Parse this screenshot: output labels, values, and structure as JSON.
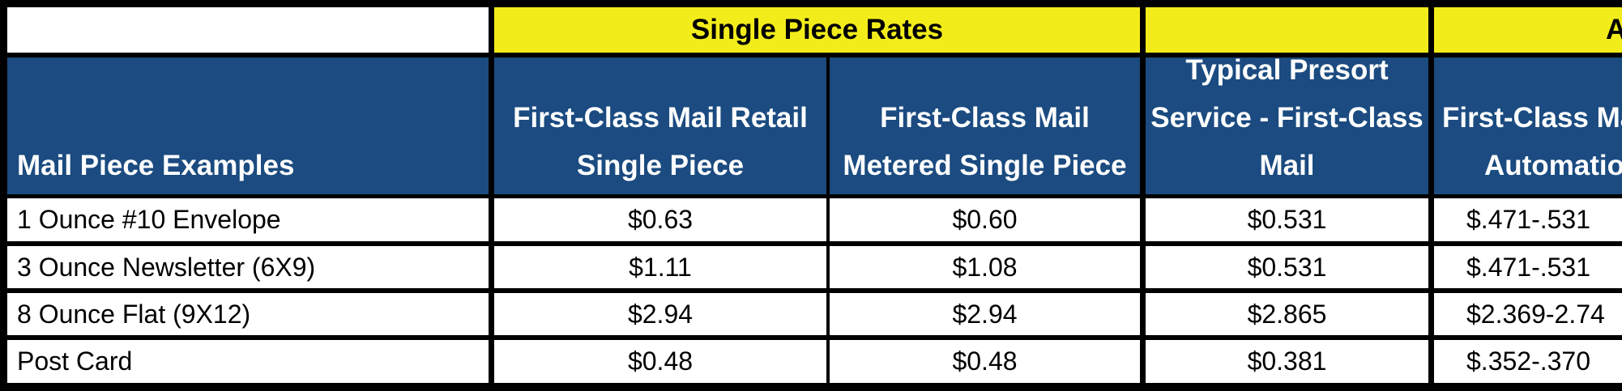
{
  "colors": {
    "group_header_bg": "#f2ec1b",
    "column_header_bg": "#1b4b80",
    "column_header_text": "#ffffff",
    "grid_lines": "#000000",
    "cell_bg": "#ffffff"
  },
  "group_headers": {
    "single_piece": "Single Piece Rates",
    "presort": "",
    "automation_truncated": "A"
  },
  "columns": [
    {
      "id": "mail_piece",
      "lines": [
        "Mail Piece Examples"
      ]
    },
    {
      "id": "retail",
      "lines": [
        "First-Class Mail Retail",
        "Single Piece"
      ]
    },
    {
      "id": "metered",
      "lines": [
        "First-Class Mail",
        "Metered Single Piece"
      ]
    },
    {
      "id": "presort",
      "lines": [
        "Typical Presort",
        "Service - First-Class",
        "Mail"
      ]
    },
    {
      "id": "automation",
      "lines": [
        "First-Class Ma",
        "Automation"
      ]
    }
  ],
  "rows": [
    {
      "label": "1 Ounce #10 Envelope",
      "retail": "$0.63",
      "metered": "$0.60",
      "presort": "$0.531",
      "automation": "$.471-.531"
    },
    {
      "label": "3 Ounce Newsletter (6X9)",
      "retail": "$1.11",
      "metered": "$1.08",
      "presort": "$0.531",
      "automation": "$.471-.531"
    },
    {
      "label": "8 Ounce Flat (9X12)",
      "retail": "$2.94",
      "metered": "$2.94",
      "presort": "$2.865",
      "automation": "$2.369-2.74"
    },
    {
      "label": "Post Card",
      "retail": "$0.48",
      "metered": "$0.48",
      "presort": "$0.381",
      "automation": "$.352-.370"
    }
  ]
}
